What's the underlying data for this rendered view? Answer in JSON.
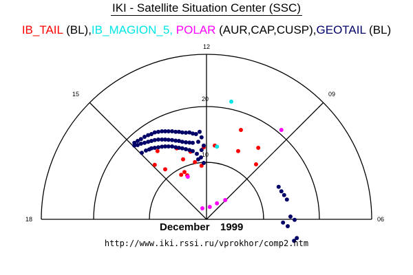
{
  "chart_data": {
    "type": "scatter",
    "title": "IKI - Satellite Situation Center (SSC)",
    "legend": [
      {
        "label": "IB_TAIL",
        "suffix": " (BL),",
        "color": "#ff0000"
      },
      {
        "label": "IB_MAGION_5,",
        "suffix": " ",
        "color": "#00e5e5"
      },
      {
        "label": "POLAR",
        "suffix": " (AUR,CAP,CUSP),",
        "color": "#ff00ff"
      },
      {
        "label": "GEOTAIL",
        "suffix": " (BL)",
        "color": "#000066"
      }
    ],
    "polar_axis": {
      "hour_labels": [
        "12",
        "15",
        "09",
        "18",
        "06"
      ],
      "radius_labels": [
        "10",
        "20"
      ],
      "rings": [
        10,
        20,
        30
      ]
    },
    "footer_month": "December",
    "footer_year": "1999",
    "url": "http://www.iki.rssi.ru/vprokhor/comp2.htm",
    "units_note": "points as [dawnward, sunward] in Re",
    "series": [
      {
        "name": "IB_TAIL",
        "color": "#ff0000",
        "points": [
          [
            6.25,
            16.25
          ],
          [
            9.4,
            13
          ],
          [
            5.75,
            12.4
          ],
          [
            1.5,
            13.4
          ],
          [
            -0.5,
            13.1
          ],
          [
            9,
            10
          ],
          [
            -8.9,
            12.4
          ],
          [
            -5.4,
            12.9
          ],
          [
            -2.9,
            12.3
          ],
          [
            -4.25,
            10.9
          ],
          [
            -2.1,
            10.4
          ],
          [
            -0.9,
            9.75
          ],
          [
            -9.4,
            9.9
          ],
          [
            -7.5,
            9.1
          ],
          [
            -4,
            8.6
          ],
          [
            -4.6,
            8.1
          ],
          [
            -3.5,
            8
          ]
        ]
      },
      {
        "name": "IB_MAGION_5",
        "color": "#00e5e5",
        "points": [
          [
            4.5,
            21.4
          ],
          [
            1.9,
            13.2
          ]
        ]
      },
      {
        "name": "POLAR",
        "color": "#ff00ff",
        "points": [
          [
            13.6,
            16.25
          ],
          [
            -3.4,
            7.75
          ],
          [
            -0.75,
            2
          ],
          [
            0.6,
            2.25
          ],
          [
            1.9,
            2.9
          ],
          [
            3.4,
            3.5
          ]
        ]
      },
      {
        "name": "GEOTAIL",
        "color": "#000066",
        "points": [
          [
            -13.1,
            13.9
          ],
          [
            -12.5,
            14.25
          ],
          [
            -11.9,
            14.6
          ],
          [
            -11.25,
            15
          ],
          [
            -10.6,
            15.3
          ],
          [
            -10,
            15.5
          ],
          [
            -9.4,
            15.8
          ],
          [
            -8.75,
            15.9
          ],
          [
            -8.1,
            16
          ],
          [
            -7.5,
            16
          ],
          [
            -6.9,
            16
          ],
          [
            -6.25,
            16
          ],
          [
            -5.6,
            15.9
          ],
          [
            -5,
            15.9
          ],
          [
            -4.4,
            15.8
          ],
          [
            -3.75,
            15.75
          ],
          [
            -3.1,
            15.8
          ],
          [
            -2.5,
            15.6
          ],
          [
            -1.9,
            15.5
          ],
          [
            -1.25,
            15.9
          ],
          [
            -13.1,
            13.4
          ],
          [
            -12.5,
            13.5
          ],
          [
            -11.9,
            13.75
          ],
          [
            -11.25,
            13.9
          ],
          [
            -10.6,
            14.1
          ],
          [
            -10,
            14.25
          ],
          [
            -9.4,
            14.4
          ],
          [
            -8.75,
            14.5
          ],
          [
            -8.1,
            14.5
          ],
          [
            -7.5,
            14.5
          ],
          [
            -6.9,
            14.45
          ],
          [
            -6.25,
            14.4
          ],
          [
            -5.6,
            14.3
          ],
          [
            -5,
            14.25
          ],
          [
            -4.4,
            14.1
          ],
          [
            -3.75,
            14
          ],
          [
            -3.1,
            13.95
          ],
          [
            -2.5,
            13.9
          ],
          [
            -1.5,
            14.1
          ],
          [
            -0.9,
            14.9
          ],
          [
            -11.75,
            12.1
          ],
          [
            -11,
            12.5
          ],
          [
            -10.4,
            12.7
          ],
          [
            -10,
            12.9
          ],
          [
            -9.4,
            13
          ],
          [
            -8.75,
            13.1
          ],
          [
            -8.1,
            13.2
          ],
          [
            -7.5,
            13.25
          ],
          [
            -6.9,
            13.25
          ],
          [
            -6.25,
            13.25
          ],
          [
            -5.6,
            13.1
          ],
          [
            -5,
            13
          ],
          [
            -4.4,
            12.9
          ],
          [
            -3.75,
            12.75
          ],
          [
            -3.1,
            12.6
          ],
          [
            -2.5,
            12.4
          ],
          [
            -1.75,
            11.9
          ],
          [
            -0.9,
            12.6
          ],
          [
            -0.5,
            13.4
          ],
          [
            -1.5,
            10.9
          ],
          [
            -1,
            11.25
          ],
          [
            -0.5,
            10.25
          ],
          [
            13.1,
            5.9
          ],
          [
            13.6,
            5.1
          ],
          [
            14.1,
            4.4
          ],
          [
            14.6,
            3.6
          ],
          [
            15.25,
            0.5
          ],
          [
            16,
            -0.1
          ],
          [
            13.9,
            -0.6
          ],
          [
            14.75,
            -1.25
          ],
          [
            15.9,
            -3.9
          ],
          [
            16.4,
            -3.4
          ]
        ]
      }
    ]
  }
}
